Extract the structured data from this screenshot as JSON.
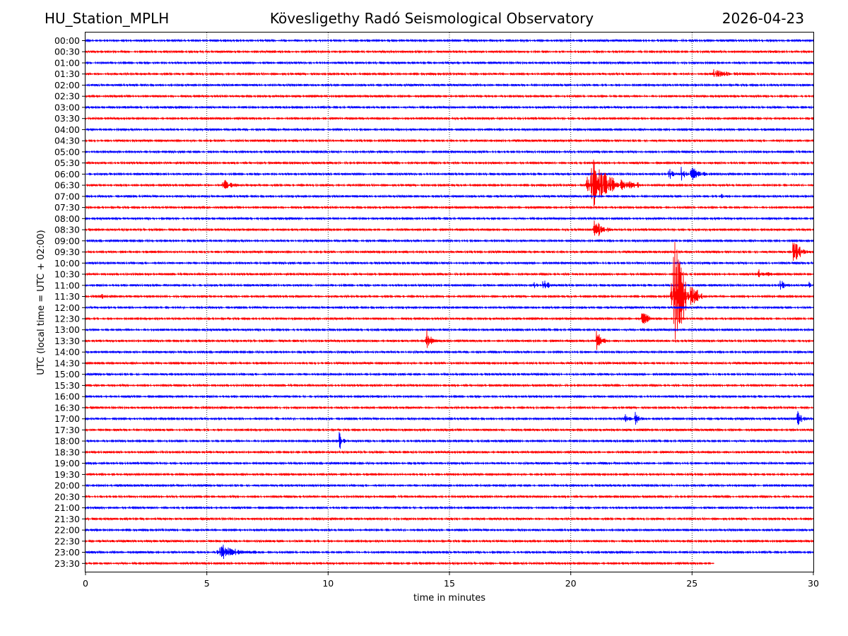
{
  "header": {
    "station": "HU_Station_MPLH",
    "observatory": "Kövesligethy Radó Seismological Observatory",
    "date": "2026-04-23"
  },
  "chart_data": {
    "type": "line",
    "title": "Kövesligethy Radó Seismological Observatory",
    "xlabel": "time in minutes",
    "ylabel": "UTC (local time = UTC + 02:00)",
    "xlim": [
      0,
      30
    ],
    "xticks": [
      "0",
      "5",
      "10",
      "15",
      "20",
      "25",
      "30"
    ],
    "grid": "vertical dotted at every 5 minutes",
    "colors": {
      "even_row": "#0000ff",
      "odd_row": "#ff0000"
    },
    "rows": [
      "00:00",
      "00:30",
      "01:00",
      "01:30",
      "02:00",
      "02:30",
      "03:00",
      "03:30",
      "04:00",
      "04:30",
      "05:00",
      "05:30",
      "06:00",
      "06:30",
      "07:00",
      "07:30",
      "08:00",
      "08:30",
      "09:00",
      "09:30",
      "10:00",
      "10:30",
      "11:00",
      "11:30",
      "12:00",
      "12:30",
      "13:00",
      "13:30",
      "14:00",
      "14:30",
      "15:00",
      "15:30",
      "16:00",
      "16:30",
      "17:00",
      "17:30",
      "18:00",
      "18:30",
      "19:00",
      "19:30",
      "20:00",
      "20:30",
      "21:00",
      "21:30",
      "22:00",
      "22:30",
      "23:00",
      "23:30"
    ],
    "last_row_end_minute": 25.9,
    "events": [
      {
        "row": "01:30",
        "minute": 25.7,
        "duration": 1.5,
        "amplitude": 6
      },
      {
        "row": "06:00",
        "minute": 24.0,
        "duration": 0.4,
        "amplitude": 8
      },
      {
        "row": "06:00",
        "minute": 24.5,
        "duration": 0.4,
        "amplitude": 9
      },
      {
        "row": "06:00",
        "minute": 24.9,
        "duration": 0.9,
        "amplitude": 10
      },
      {
        "row": "06:30",
        "minute": 5.6,
        "duration": 0.8,
        "amplitude": 8
      },
      {
        "row": "06:30",
        "minute": 20.6,
        "duration": 2.3,
        "amplitude": 38
      },
      {
        "row": "07:00",
        "minute": 26.1,
        "duration": 0.4,
        "amplitude": 4
      },
      {
        "row": "08:30",
        "minute": 20.9,
        "duration": 0.8,
        "amplitude": 16
      },
      {
        "row": "09:30",
        "minute": 29.1,
        "duration": 0.7,
        "amplitude": 18
      },
      {
        "row": "10:30",
        "minute": 27.7,
        "duration": 0.6,
        "amplitude": 10
      },
      {
        "row": "11:00",
        "minute": 18.4,
        "duration": 0.3,
        "amplitude": 12
      },
      {
        "row": "11:00",
        "minute": 18.8,
        "duration": 0.6,
        "amplitude": 9
      },
      {
        "row": "11:00",
        "minute": 28.6,
        "duration": 0.4,
        "amplitude": 8
      },
      {
        "row": "11:00",
        "minute": 29.8,
        "duration": 0.2,
        "amplitude": 6
      },
      {
        "row": "11:30",
        "minute": 0.6,
        "duration": 0.3,
        "amplitude": 4
      },
      {
        "row": "11:30",
        "minute": 24.1,
        "duration": 1.3,
        "amplitude": 90
      },
      {
        "row": "12:30",
        "minute": 22.9,
        "duration": 0.4,
        "amplitude": 22
      },
      {
        "row": "13:30",
        "minute": 14.0,
        "duration": 0.5,
        "amplitude": 16
      },
      {
        "row": "13:30",
        "minute": 21.0,
        "duration": 0.5,
        "amplitude": 18
      },
      {
        "row": "17:00",
        "minute": 22.2,
        "duration": 0.3,
        "amplitude": 8
      },
      {
        "row": "17:00",
        "minute": 22.6,
        "duration": 0.4,
        "amplitude": 10
      },
      {
        "row": "17:00",
        "minute": 29.3,
        "duration": 0.4,
        "amplitude": 14
      },
      {
        "row": "18:00",
        "minute": 10.4,
        "duration": 0.3,
        "amplitude": 18
      },
      {
        "row": "23:00",
        "minute": 5.4,
        "duration": 1.6,
        "amplitude": 12
      }
    ]
  }
}
